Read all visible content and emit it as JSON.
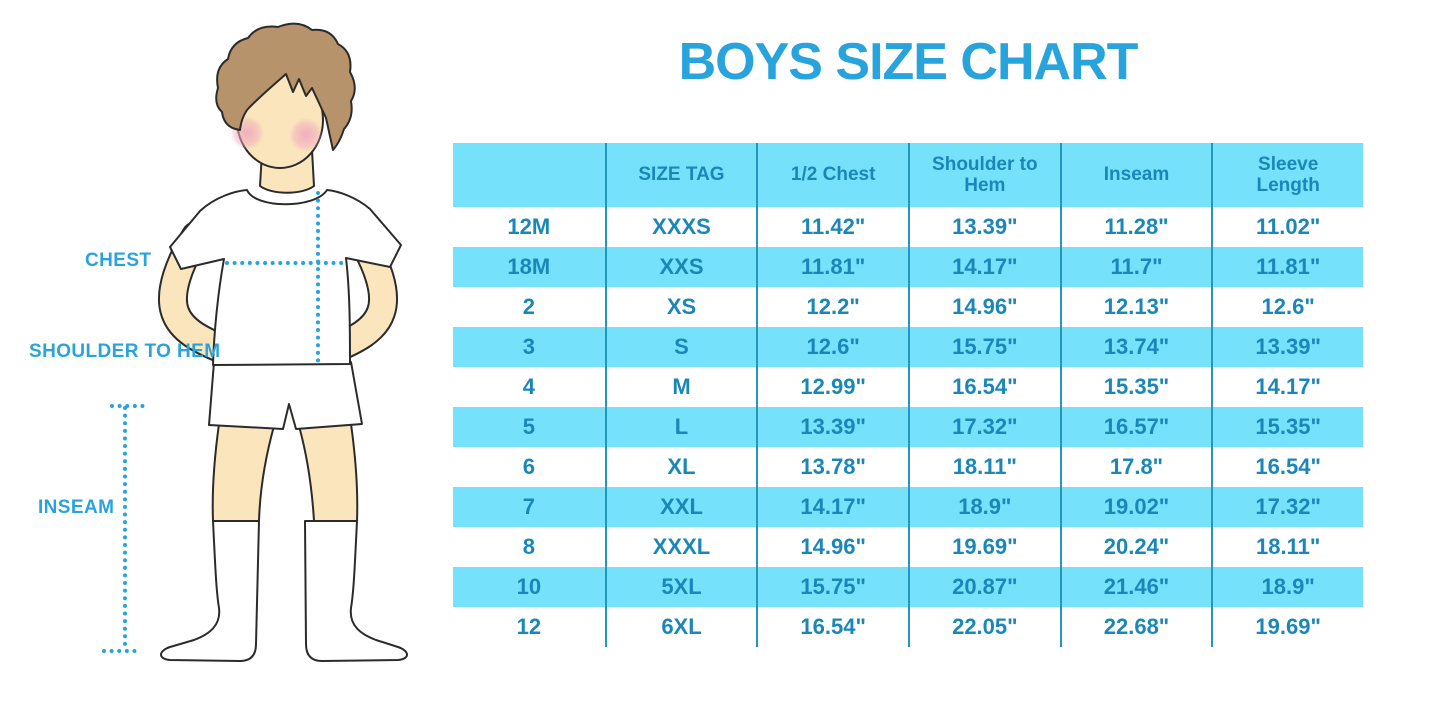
{
  "title": "BOYS SIZE CHART",
  "figure_labels": {
    "chest": "CHEST",
    "shoulder": "SHOULDER TO HEM",
    "inseam": "INSEAM"
  },
  "colors": {
    "accent": "#29A3DC",
    "table_text": "#1B87B8",
    "band": "#75E1FA",
    "grid": "#2596BE",
    "skin": "#FBE5BC",
    "hair": "#B6936B",
    "blush": "#F0A8BE",
    "outline": "#2B2B2B",
    "white": "#FFFFFF"
  },
  "chart_data": {
    "type": "table",
    "title": "BOYS SIZE CHART",
    "columns": [
      "",
      "SIZE TAG",
      "1/2 Chest",
      "Shoulder to Hem",
      "Inseam",
      "Sleeve Length"
    ],
    "rows": [
      [
        "12M",
        "XXXS",
        "11.42\"",
        "13.39\"",
        "11.28\"",
        "11.02\""
      ],
      [
        "18M",
        "XXS",
        "11.81\"",
        "14.17\"",
        "11.7\"",
        "11.81\""
      ],
      [
        "2",
        "XS",
        "12.2\"",
        "14.96\"",
        "12.13\"",
        "12.6\""
      ],
      [
        "3",
        "S",
        "12.6\"",
        "15.75\"",
        "13.74\"",
        "13.39\""
      ],
      [
        "4",
        "M",
        "12.99\"",
        "16.54\"",
        "15.35\"",
        "14.17\""
      ],
      [
        "5",
        "L",
        "13.39\"",
        "17.32\"",
        "16.57\"",
        "15.35\""
      ],
      [
        "6",
        "XL",
        "13.78\"",
        "18.11\"",
        "17.8\"",
        "16.54\""
      ],
      [
        "7",
        "XXL",
        "14.17\"",
        "18.9\"",
        "19.02\"",
        "17.32\""
      ],
      [
        "8",
        "XXXL",
        "14.96\"",
        "19.69\"",
        "20.24\"",
        "18.11\""
      ],
      [
        "10",
        "5XL",
        "15.75\"",
        "20.87\"",
        "21.46\"",
        "18.9\""
      ],
      [
        "12",
        "6XL",
        "16.54\"",
        "22.05\"",
        "22.68\"",
        "19.69\""
      ]
    ],
    "row_band_colors": [
      "white",
      "cyan-alternating"
    ],
    "legend": "measurements shown on boy illustration: chest, shoulder to hem, inseam"
  }
}
